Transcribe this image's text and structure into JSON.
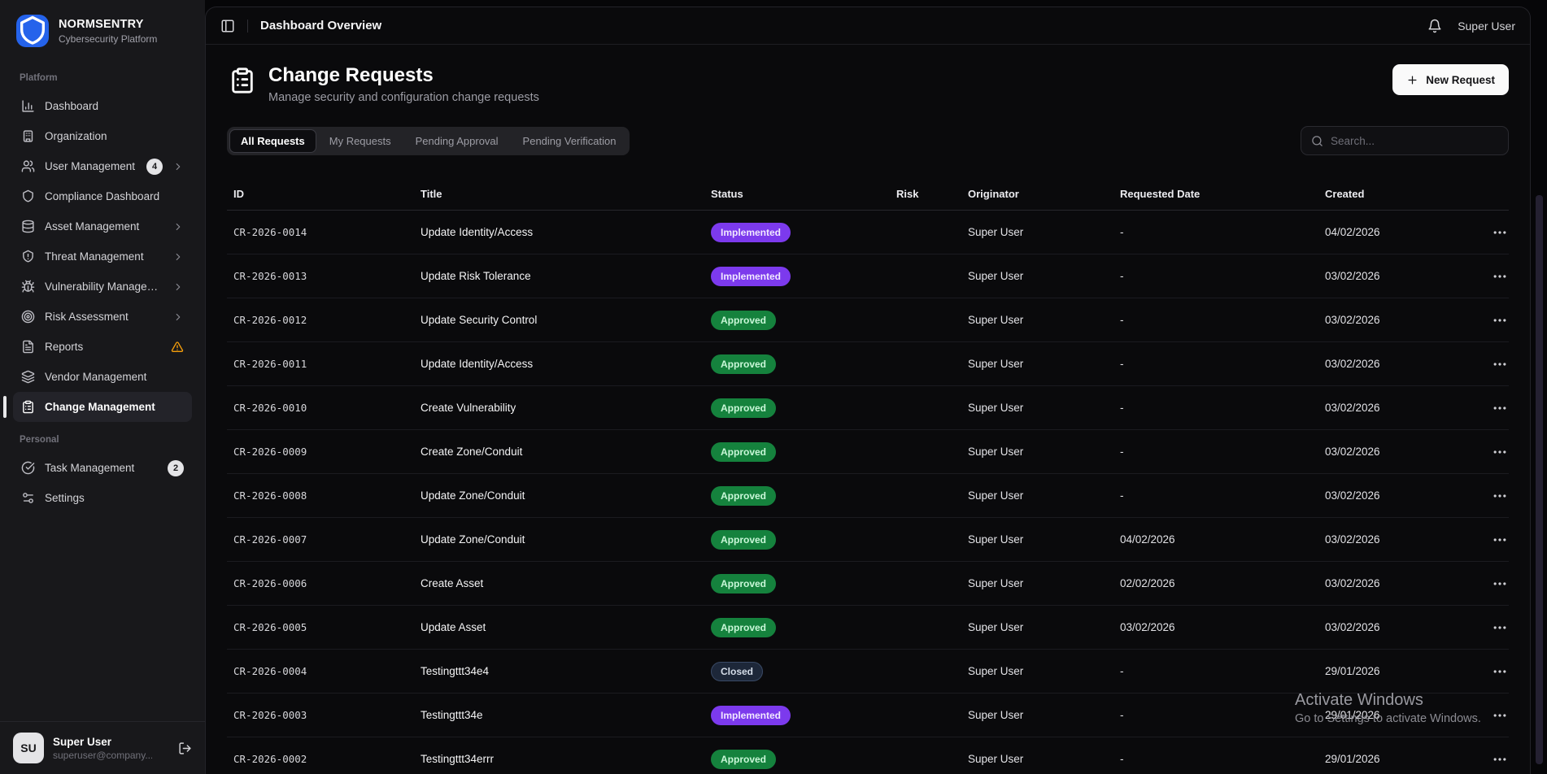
{
  "app": {
    "name": "NORMSENTRY",
    "tagline": "Cybersecurity Platform"
  },
  "topbar": {
    "title": "Dashboard Overview",
    "user": "Super User"
  },
  "sidebar": {
    "sections": [
      {
        "label": "Platform",
        "items": [
          {
            "label": "Dashboard",
            "icon": "bar-chart"
          },
          {
            "label": "Organization",
            "icon": "building"
          },
          {
            "label": "User Management",
            "icon": "users",
            "badge": "4",
            "chevron": true
          },
          {
            "label": "Compliance Dashboard",
            "icon": "shield"
          },
          {
            "label": "Asset Management",
            "icon": "database",
            "chevron": true
          },
          {
            "label": "Threat Management",
            "icon": "shield-alert",
            "chevron": true
          },
          {
            "label": "Vulnerability Managem...",
            "icon": "bug",
            "chevron": true
          },
          {
            "label": "Risk Assessment",
            "icon": "target",
            "chevron": true
          },
          {
            "label": "Reports",
            "icon": "file-text",
            "warning": true
          },
          {
            "label": "Vendor Management",
            "icon": "layers"
          },
          {
            "label": "Change Management",
            "icon": "clipboard-list",
            "active": true
          }
        ]
      },
      {
        "label": "Personal",
        "items": [
          {
            "label": "Task Management",
            "icon": "check-circle",
            "badge": "2"
          },
          {
            "label": "Settings",
            "icon": "sliders"
          }
        ]
      }
    ],
    "user": {
      "initials": "SU",
      "name": "Super User",
      "email": "superuser@company...."
    }
  },
  "page": {
    "title": "Change Requests",
    "subtitle": "Manage security and configuration change requests",
    "new_request_label": "New Request",
    "search_placeholder": "Search...",
    "tabs": [
      "All Requests",
      "My Requests",
      "Pending Approval",
      "Pending Verification"
    ],
    "active_tab": "All Requests"
  },
  "table": {
    "columns": [
      "ID",
      "Title",
      "Status",
      "Risk",
      "Originator",
      "Requested Date",
      "Created"
    ],
    "rows": [
      {
        "id": "CR-2026-0014",
        "title": "Update Identity/Access",
        "status": "Implemented",
        "risk": "",
        "originator": "Super User",
        "requested": "-",
        "created": "04/02/2026"
      },
      {
        "id": "CR-2026-0013",
        "title": "Update Risk Tolerance",
        "status": "Implemented",
        "risk": "",
        "originator": "Super User",
        "requested": "-",
        "created": "03/02/2026"
      },
      {
        "id": "CR-2026-0012",
        "title": "Update Security Control",
        "status": "Approved",
        "risk": "",
        "originator": "Super User",
        "requested": "-",
        "created": "03/02/2026"
      },
      {
        "id": "CR-2026-0011",
        "title": "Update Identity/Access",
        "status": "Approved",
        "risk": "",
        "originator": "Super User",
        "requested": "-",
        "created": "03/02/2026"
      },
      {
        "id": "CR-2026-0010",
        "title": "Create Vulnerability",
        "status": "Approved",
        "risk": "",
        "originator": "Super User",
        "requested": "-",
        "created": "03/02/2026"
      },
      {
        "id": "CR-2026-0009",
        "title": "Create Zone/Conduit",
        "status": "Approved",
        "risk": "",
        "originator": "Super User",
        "requested": "-",
        "created": "03/02/2026"
      },
      {
        "id": "CR-2026-0008",
        "title": "Update Zone/Conduit",
        "status": "Approved",
        "risk": "",
        "originator": "Super User",
        "requested": "-",
        "created": "03/02/2026"
      },
      {
        "id": "CR-2026-0007",
        "title": "Update Zone/Conduit",
        "status": "Approved",
        "risk": "",
        "originator": "Super User",
        "requested": "04/02/2026",
        "created": "03/02/2026"
      },
      {
        "id": "CR-2026-0006",
        "title": "Create Asset",
        "status": "Approved",
        "risk": "",
        "originator": "Super User",
        "requested": "02/02/2026",
        "created": "03/02/2026"
      },
      {
        "id": "CR-2026-0005",
        "title": "Update Asset",
        "status": "Approved",
        "risk": "",
        "originator": "Super User",
        "requested": "03/02/2026",
        "created": "03/02/2026"
      },
      {
        "id": "CR-2026-0004",
        "title": "Testingttt34e4",
        "status": "Closed",
        "risk": "",
        "originator": "Super User",
        "requested": "-",
        "created": "29/01/2026"
      },
      {
        "id": "CR-2026-0003",
        "title": "Testingttt34e",
        "status": "Implemented",
        "risk": "",
        "originator": "Super User",
        "requested": "-",
        "created": "29/01/2026"
      },
      {
        "id": "CR-2026-0002",
        "title": "Testingttt34errr",
        "status": "Approved",
        "risk": "",
        "originator": "Super User",
        "requested": "-",
        "created": "29/01/2026"
      }
    ]
  },
  "status_colors": {
    "Implemented": {
      "bg": "#7c3aed",
      "text": "#f1e8ff"
    },
    "Approved": {
      "bg": "#15823d",
      "text": "#c9f7d8"
    },
    "Closed": {
      "bg": "#1d2739",
      "text": "#d5dde9",
      "border": "#3a4a66"
    }
  },
  "icons": {
    "logo": "shield-icon",
    "sidebar_toggle": "panel-left-icon",
    "notifications": "bell-icon",
    "page_header": "clipboard-list-icon",
    "new_request": "plus-icon",
    "search": "search-icon",
    "row_actions": "ellipsis-icon",
    "logout": "log-out-icon",
    "reports_warning": "alert-triangle-icon"
  },
  "accent_colors": {
    "brand_blue": "#2563eb",
    "warning_amber": "#f59e0b"
  },
  "watermark": {
    "line1": "Activate Windows",
    "line2": "Go to Settings to activate Windows."
  }
}
